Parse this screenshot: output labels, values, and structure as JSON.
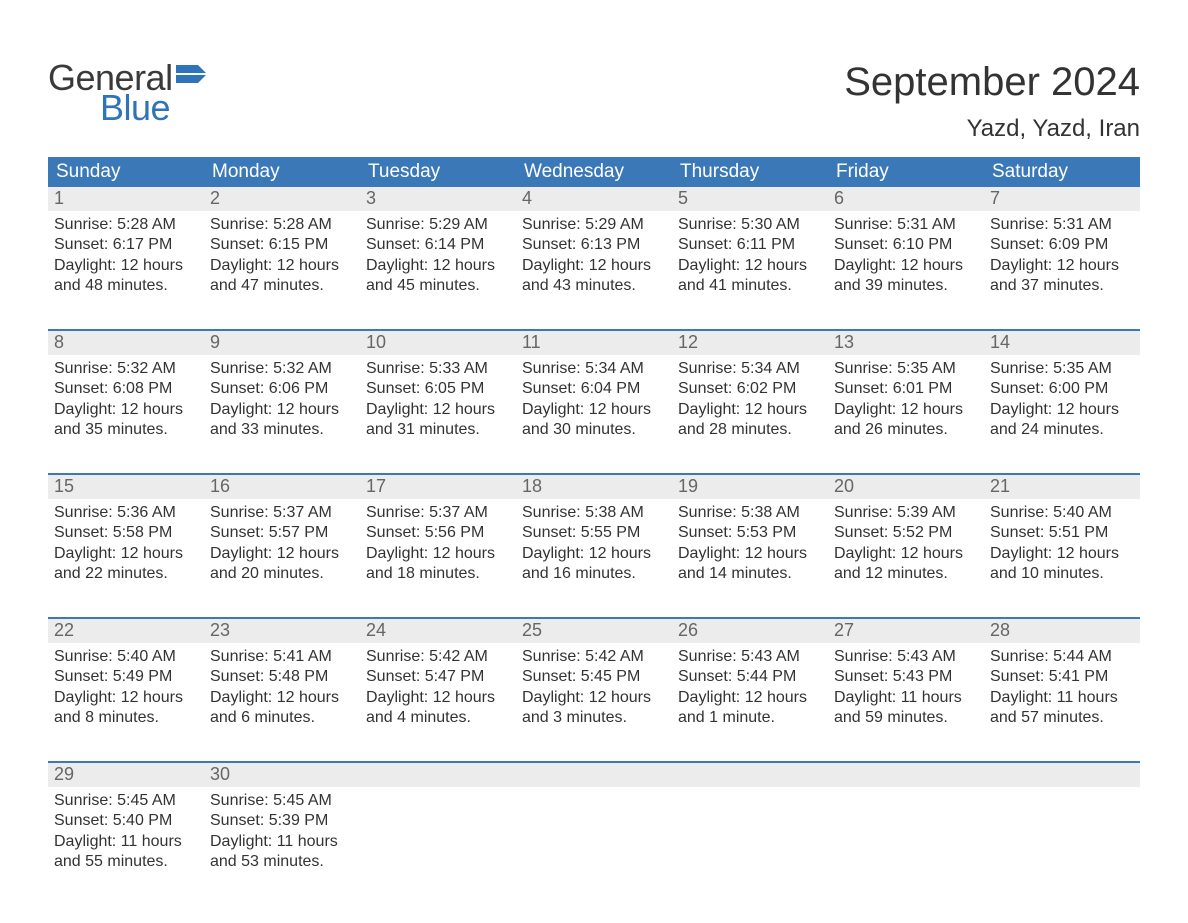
{
  "logo": {
    "general": "General",
    "blue": "Blue"
  },
  "title": "September 2024",
  "location": "Yazd, Yazd, Iran",
  "colors": {
    "header_bg": "#3b78b8",
    "header_text": "#ffffff",
    "daynum_bg": "#ececec",
    "daynum_text": "#666666",
    "body_text": "#333333",
    "rule": "#3b78b8",
    "logo_gray": "#3a3a3a",
    "logo_blue": "#2f73b8",
    "background": "#ffffff"
  },
  "weekdays": [
    "Sunday",
    "Monday",
    "Tuesday",
    "Wednesday",
    "Thursday",
    "Friday",
    "Saturday"
  ],
  "weeks": [
    [
      {
        "n": "1",
        "sunrise": "5:28 AM",
        "sunset": "6:17 PM",
        "daylight": "12 hours and 48 minutes."
      },
      {
        "n": "2",
        "sunrise": "5:28 AM",
        "sunset": "6:15 PM",
        "daylight": "12 hours and 47 minutes."
      },
      {
        "n": "3",
        "sunrise": "5:29 AM",
        "sunset": "6:14 PM",
        "daylight": "12 hours and 45 minutes."
      },
      {
        "n": "4",
        "sunrise": "5:29 AM",
        "sunset": "6:13 PM",
        "daylight": "12 hours and 43 minutes."
      },
      {
        "n": "5",
        "sunrise": "5:30 AM",
        "sunset": "6:11 PM",
        "daylight": "12 hours and 41 minutes."
      },
      {
        "n": "6",
        "sunrise": "5:31 AM",
        "sunset": "6:10 PM",
        "daylight": "12 hours and 39 minutes."
      },
      {
        "n": "7",
        "sunrise": "5:31 AM",
        "sunset": "6:09 PM",
        "daylight": "12 hours and 37 minutes."
      }
    ],
    [
      {
        "n": "8",
        "sunrise": "5:32 AM",
        "sunset": "6:08 PM",
        "daylight": "12 hours and 35 minutes."
      },
      {
        "n": "9",
        "sunrise": "5:32 AM",
        "sunset": "6:06 PM",
        "daylight": "12 hours and 33 minutes."
      },
      {
        "n": "10",
        "sunrise": "5:33 AM",
        "sunset": "6:05 PM",
        "daylight": "12 hours and 31 minutes."
      },
      {
        "n": "11",
        "sunrise": "5:34 AM",
        "sunset": "6:04 PM",
        "daylight": "12 hours and 30 minutes."
      },
      {
        "n": "12",
        "sunrise": "5:34 AM",
        "sunset": "6:02 PM",
        "daylight": "12 hours and 28 minutes."
      },
      {
        "n": "13",
        "sunrise": "5:35 AM",
        "sunset": "6:01 PM",
        "daylight": "12 hours and 26 minutes."
      },
      {
        "n": "14",
        "sunrise": "5:35 AM",
        "sunset": "6:00 PM",
        "daylight": "12 hours and 24 minutes."
      }
    ],
    [
      {
        "n": "15",
        "sunrise": "5:36 AM",
        "sunset": "5:58 PM",
        "daylight": "12 hours and 22 minutes."
      },
      {
        "n": "16",
        "sunrise": "5:37 AM",
        "sunset": "5:57 PM",
        "daylight": "12 hours and 20 minutes."
      },
      {
        "n": "17",
        "sunrise": "5:37 AM",
        "sunset": "5:56 PM",
        "daylight": "12 hours and 18 minutes."
      },
      {
        "n": "18",
        "sunrise": "5:38 AM",
        "sunset": "5:55 PM",
        "daylight": "12 hours and 16 minutes."
      },
      {
        "n": "19",
        "sunrise": "5:38 AM",
        "sunset": "5:53 PM",
        "daylight": "12 hours and 14 minutes."
      },
      {
        "n": "20",
        "sunrise": "5:39 AM",
        "sunset": "5:52 PM",
        "daylight": "12 hours and 12 minutes."
      },
      {
        "n": "21",
        "sunrise": "5:40 AM",
        "sunset": "5:51 PM",
        "daylight": "12 hours and 10 minutes."
      }
    ],
    [
      {
        "n": "22",
        "sunrise": "5:40 AM",
        "sunset": "5:49 PM",
        "daylight": "12 hours and 8 minutes."
      },
      {
        "n": "23",
        "sunrise": "5:41 AM",
        "sunset": "5:48 PM",
        "daylight": "12 hours and 6 minutes."
      },
      {
        "n": "24",
        "sunrise": "5:42 AM",
        "sunset": "5:47 PM",
        "daylight": "12 hours and 4 minutes."
      },
      {
        "n": "25",
        "sunrise": "5:42 AM",
        "sunset": "5:45 PM",
        "daylight": "12 hours and 3 minutes."
      },
      {
        "n": "26",
        "sunrise": "5:43 AM",
        "sunset": "5:44 PM",
        "daylight": "12 hours and 1 minute."
      },
      {
        "n": "27",
        "sunrise": "5:43 AM",
        "sunset": "5:43 PM",
        "daylight": "11 hours and 59 minutes."
      },
      {
        "n": "28",
        "sunrise": "5:44 AM",
        "sunset": "5:41 PM",
        "daylight": "11 hours and 57 minutes."
      }
    ],
    [
      {
        "n": "29",
        "sunrise": "5:45 AM",
        "sunset": "5:40 PM",
        "daylight": "11 hours and 55 minutes."
      },
      {
        "n": "30",
        "sunrise": "5:45 AM",
        "sunset": "5:39 PM",
        "daylight": "11 hours and 53 minutes."
      },
      null,
      null,
      null,
      null,
      null
    ]
  ],
  "labels": {
    "sunrise": "Sunrise: ",
    "sunset": "Sunset: ",
    "daylight": "Daylight: "
  }
}
